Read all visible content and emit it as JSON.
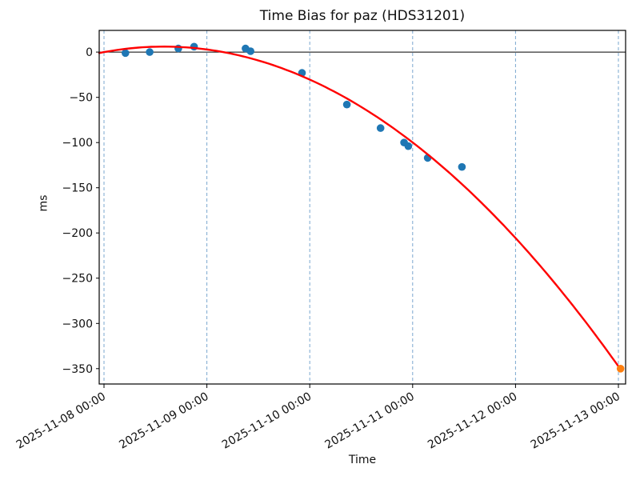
{
  "chart_data": {
    "type": "scatter",
    "title": "Time Bias for paz (HDS31201)",
    "xlabel": "Time",
    "ylabel": "ms",
    "legend": "none",
    "x_axis": {
      "tick_labels": [
        "2025-11-08 00:00",
        "2025-11-09 00:00",
        "2025-11-10 00:00",
        "2025-11-11 00:00",
        "2025-11-12 00:00",
        "2025-11-13 00:00"
      ],
      "tick_t_days": [
        0,
        1,
        2,
        3,
        4,
        5
      ],
      "xlim_t_days": [
        -0.047,
        5.07
      ],
      "tick_label_rotation_deg": 30,
      "grid": "vertical-dashed"
    },
    "y_axis": {
      "tick_labels": [
        "0",
        "−50",
        "−100",
        "−150",
        "−200",
        "−250",
        "−300",
        "−350"
      ],
      "tick_values": [
        0,
        -50,
        -100,
        -150,
        -200,
        -250,
        -300,
        -350
      ],
      "ylim": [
        -367,
        24
      ],
      "grid": "off"
    },
    "zero_line": true,
    "series": [
      {
        "name": "measurements",
        "type": "scatter",
        "color": "#1f77b4",
        "points": [
          {
            "time": "2025-11-08 05:00",
            "t_days": 0.208,
            "ms": -1
          },
          {
            "time": "2025-11-08 10:40",
            "t_days": 0.444,
            "ms": 0
          },
          {
            "time": "2025-11-08 17:20",
            "t_days": 0.722,
            "ms": 4
          },
          {
            "time": "2025-11-08 21:00",
            "t_days": 0.875,
            "ms": 6
          },
          {
            "time": "2025-11-09 09:00",
            "t_days": 1.375,
            "ms": 4
          },
          {
            "time": "2025-11-09 10:10",
            "t_days": 1.424,
            "ms": 1
          },
          {
            "time": "2025-11-09 22:10",
            "t_days": 1.924,
            "ms": -23
          },
          {
            "time": "2025-11-10 08:40",
            "t_days": 2.361,
            "ms": -58
          },
          {
            "time": "2025-11-10 16:30",
            "t_days": 2.688,
            "ms": -84
          },
          {
            "time": "2025-11-10 22:00",
            "t_days": 2.917,
            "ms": -100
          },
          {
            "time": "2025-11-10 23:00",
            "t_days": 2.958,
            "ms": -104
          },
          {
            "time": "2025-11-11 03:30",
            "t_days": 3.146,
            "ms": -117
          },
          {
            "time": "2025-11-11 11:30",
            "t_days": 3.479,
            "ms": -127
          }
        ]
      },
      {
        "name": "quadratic-fit",
        "type": "line",
        "color": "#ff0000",
        "poly_coeffs_c0_c1_c2": [
          0,
          21,
          -18.1
        ],
        "t_range": [
          -0.047,
          5.021
        ],
        "fit_values_at_day_ticks": [
          0,
          2.9,
          -30.4,
          -99.9,
          -205.6,
          -347.5
        ]
      },
      {
        "name": "extrapolated-point",
        "type": "scatter",
        "color": "#ff7f0e",
        "points": [
          {
            "time": "2025-11-13 00:30",
            "t_days": 5.021,
            "ms": -350
          }
        ]
      }
    ],
    "colors": {
      "grid": "#7aa7cf",
      "spine": "#000000",
      "zero_line": "#000000",
      "text": "#111111"
    }
  }
}
